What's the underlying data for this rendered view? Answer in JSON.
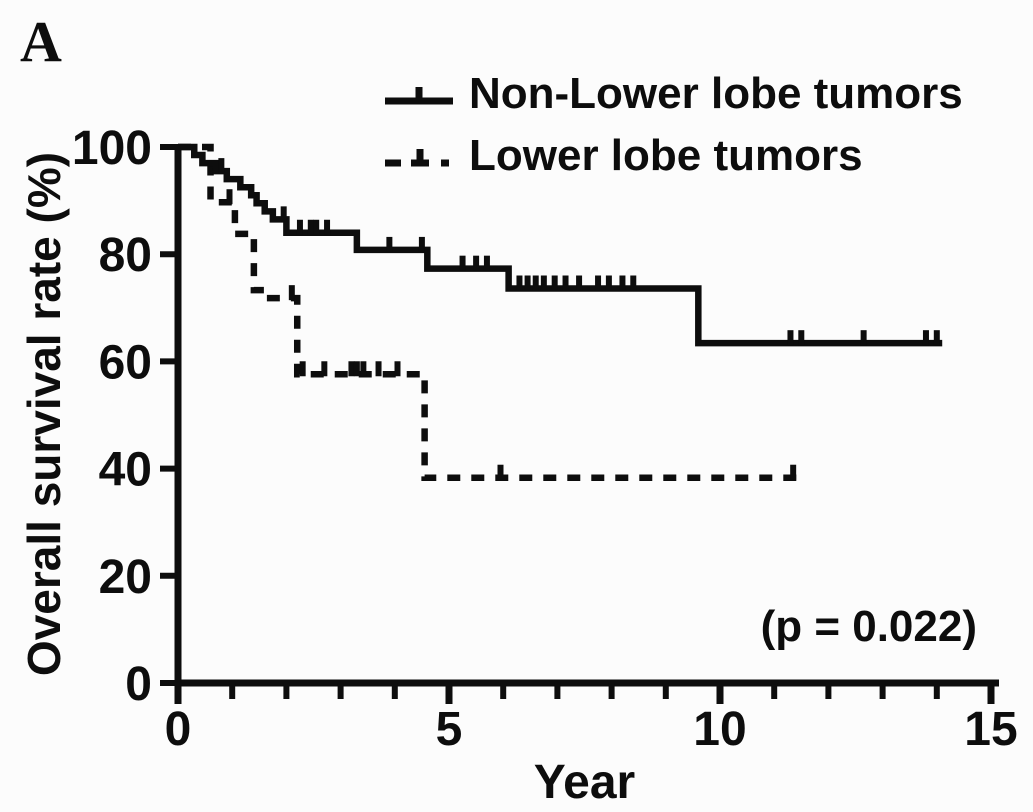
{
  "panel_label": "A",
  "chart_data": {
    "type": "line",
    "subtype": "kaplan-meier-step-curves",
    "title": "",
    "xlabel": "Year",
    "ylabel": "Overall survival rate (%)",
    "xlim": [
      0,
      15
    ],
    "ylim": [
      0,
      100
    ],
    "x_major_ticks": [
      0,
      5,
      10,
      15
    ],
    "x_minor_tick_interval": 1,
    "y_ticks": [
      0,
      20,
      40,
      60,
      80,
      100
    ],
    "grid": false,
    "legend_position": "top-right",
    "annotation": "(p = 0.022)",
    "line_color": "#0d0d0d",
    "series": [
      {
        "name": "Non-Lower lobe tumors",
        "line_style": "solid",
        "color": "#0d0d0d",
        "start": [
          0,
          100
        ],
        "drops": [
          [
            0.3,
            98.5
          ],
          [
            0.45,
            97
          ],
          [
            0.7,
            95.5
          ],
          [
            0.9,
            94
          ],
          [
            1.15,
            92.5
          ],
          [
            1.35,
            91
          ],
          [
            1.45,
            89.5
          ],
          [
            1.6,
            88
          ],
          [
            1.75,
            86.5
          ],
          [
            2.0,
            84
          ],
          [
            3.3,
            80.8
          ],
          [
            4.6,
            77.3
          ],
          [
            6.1,
            73.6
          ],
          [
            9.6,
            63.4
          ]
        ],
        "end_time": 14.1,
        "censor_marks": [
          [
            0.8,
            95.5
          ],
          [
            1.95,
            86.5
          ],
          [
            2.25,
            84
          ],
          [
            2.45,
            84
          ],
          [
            2.55,
            84
          ],
          [
            2.75,
            84
          ],
          [
            3.9,
            80.8
          ],
          [
            4.5,
            80.8
          ],
          [
            5.25,
            77.3
          ],
          [
            5.5,
            77.3
          ],
          [
            5.7,
            77.3
          ],
          [
            6.3,
            73.6
          ],
          [
            6.45,
            73.6
          ],
          [
            6.6,
            73.6
          ],
          [
            6.75,
            73.6
          ],
          [
            6.95,
            73.6
          ],
          [
            7.15,
            73.6
          ],
          [
            7.4,
            73.6
          ],
          [
            7.75,
            73.6
          ],
          [
            7.95,
            73.6
          ],
          [
            8.2,
            73.6
          ],
          [
            8.4,
            73.6
          ],
          [
            11.3,
            63.4
          ],
          [
            11.5,
            63.4
          ],
          [
            12.65,
            63.4
          ],
          [
            13.8,
            63.4
          ],
          [
            14.0,
            63.4
          ]
        ]
      },
      {
        "name": "Lower lobe tumors",
        "line_style": "dashed",
        "color": "#0d0d0d",
        "start": [
          0,
          100
        ],
        "drops": [
          [
            0.6,
            89.7
          ],
          [
            1.05,
            83.8
          ],
          [
            1.4,
            73.3
          ],
          [
            1.7,
            71.8
          ],
          [
            2.2,
            57.6
          ],
          [
            4.55,
            38.3
          ]
        ],
        "end_time": 11.45,
        "censor_marks": [
          [
            0.95,
            89.7
          ],
          [
            2.1,
            71.8
          ],
          [
            2.3,
            57.6
          ],
          [
            2.7,
            57.6
          ],
          [
            3.2,
            57.6
          ],
          [
            3.3,
            57.6
          ],
          [
            3.42,
            57.6
          ],
          [
            3.7,
            57.6
          ],
          [
            4.05,
            57.6
          ],
          [
            5.95,
            38.3
          ],
          [
            11.35,
            38.3
          ]
        ]
      }
    ]
  }
}
